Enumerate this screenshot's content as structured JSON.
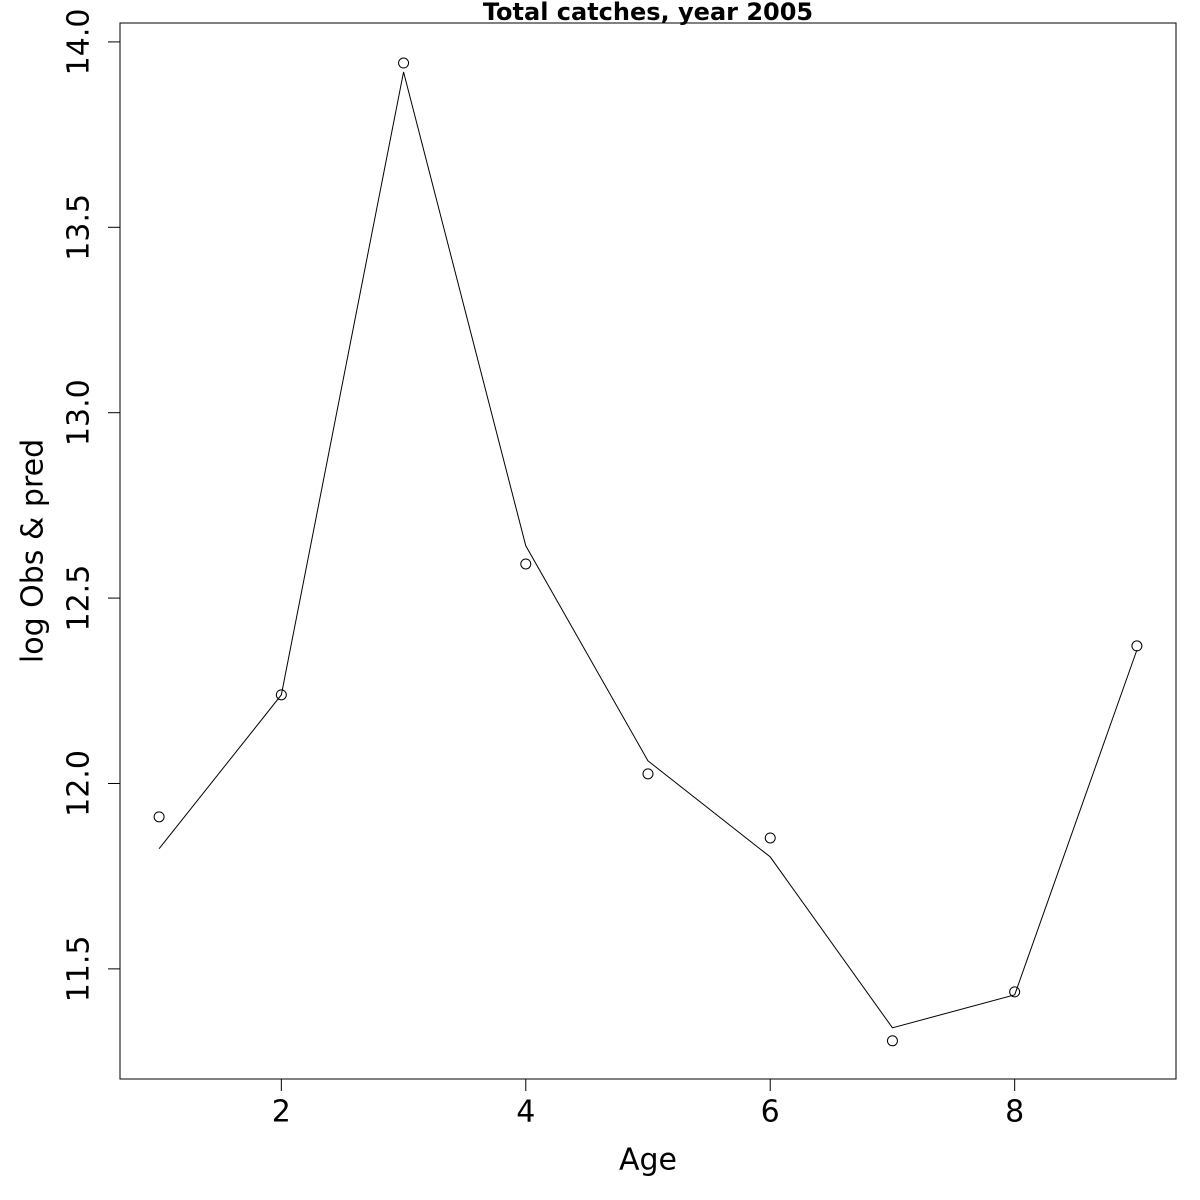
{
  "chart_data": {
    "type": "line",
    "title": "Total catches, year 2005",
    "x_label": "Age",
    "y_label": "log Obs & pred",
    "x": [
      1,
      2,
      3,
      4,
      5,
      6,
      7,
      8,
      9
    ],
    "series": [
      {
        "style": "points",
        "color": "#000000",
        "values": [
          11.91,
          12.239,
          13.943,
          12.592,
          12.026,
          11.853,
          11.306,
          11.438,
          12.371
        ]
      },
      {
        "style": "line",
        "color": "#000000",
        "values": [
          11.824,
          12.239,
          13.919,
          12.641,
          12.061,
          11.802,
          11.341,
          11.43,
          12.36
        ]
      }
    ],
    "xlim": [
      0.68,
      9.32
    ],
    "ylim": [
      11.203,
      14.051
    ],
    "xticks": [
      2,
      4,
      6,
      8
    ],
    "yticks": [
      11.5,
      {
        "value": 12,
        "label": "12.0"
      },
      12.5,
      {
        "value": 13,
        "label": "13.0"
      },
      13.5,
      {
        "value": 14,
        "label": "14.0"
      }
    ],
    "grid": false
  }
}
